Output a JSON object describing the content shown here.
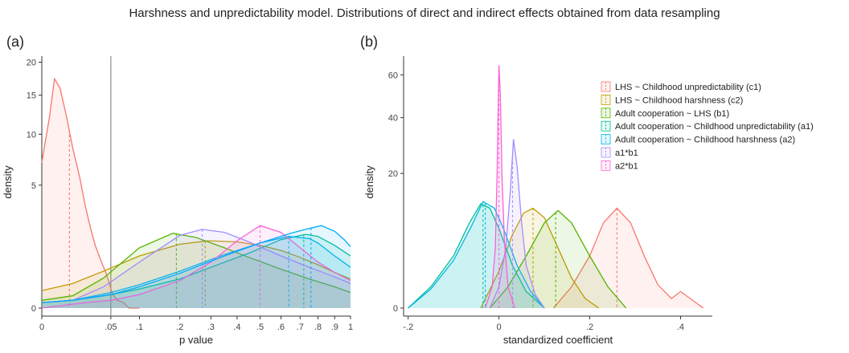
{
  "title": "Harshness and unpredictability model. Distributions of direct and indirect effects obtained from data resampling",
  "chart_data": [
    {
      "panel": "(a)",
      "type": "area",
      "xlabel": "p value",
      "ylabel": "density",
      "x_ticks": [
        {
          "value": 0,
          "label": "0"
        },
        {
          "value": 0.05,
          "label": ".05"
        },
        {
          "value": 0.1,
          "label": ".1"
        },
        {
          "value": 0.2,
          "label": ".2"
        },
        {
          "value": 0.3,
          "label": ".3"
        },
        {
          "value": 0.4,
          "label": ".4"
        },
        {
          "value": 0.5,
          "label": ".5"
        },
        {
          "value": 0.6,
          "label": ".6"
        },
        {
          "value": 0.7,
          "label": ".7"
        },
        {
          "value": 0.8,
          "label": ".8"
        },
        {
          "value": 0.9,
          "label": ".9"
        },
        {
          "value": 1,
          "label": "1"
        }
      ],
      "y_ticks": [
        {
          "value": 0,
          "label": "0"
        },
        {
          "value": 5,
          "label": "5"
        },
        {
          "value": 10,
          "label": "10"
        },
        {
          "value": 15,
          "label": "15"
        },
        {
          "value": 20,
          "label": "20"
        }
      ],
      "x_scale": "sqrt",
      "y_scale": "sqrt",
      "xlim": [
        0,
        1
      ],
      "ylim": [
        0,
        21
      ],
      "reference_line": 0.05,
      "series": [
        {
          "color": "#F8766D",
          "x": [
            0,
            0.0006,
            0.0017,
            0.0035,
            0.0065,
            0.01,
            0.015,
            0.02,
            0.025,
            0.03,
            0.036,
            0.043,
            0.048,
            0.05,
            0.053,
            0.06,
            0.07,
            0.08,
            0.1
          ],
          "y": [
            7,
            12,
            17.4,
            16,
            12,
            8.5,
            5.7,
            3.4,
            2.1,
            1.3,
            0.78,
            0.42,
            0.2,
            0.12,
            0.06,
            0.02,
            0.01,
            0,
            0
          ],
          "median": 0.008
        },
        {
          "color": "#C49A00",
          "x": [
            0,
            0.01,
            0.04,
            0.1,
            0.2,
            0.29,
            0.4,
            0.5,
            0.6,
            0.7,
            0.8,
            0.9,
            1
          ],
          "y": [
            0.1,
            0.2,
            0.45,
            0.9,
            1.35,
            1.5,
            1.45,
            1.3,
            1.1,
            0.85,
            0.62,
            0.42,
            0.28
          ],
          "median": 0.28
        },
        {
          "color": "#53B400",
          "x": [
            0,
            0.01,
            0.04,
            0.1,
            0.18,
            0.25,
            0.35,
            0.45,
            0.6,
            0.75,
            0.9,
            1
          ],
          "y": [
            0.02,
            0.05,
            0.3,
            1.2,
            1.85,
            1.65,
            1.2,
            0.85,
            0.5,
            0.28,
            0.15,
            0.08
          ],
          "median": 0.19
        },
        {
          "color": "#00C094",
          "x": [
            0,
            0.01,
            0.05,
            0.1,
            0.2,
            0.3,
            0.45,
            0.6,
            0.73,
            0.8,
            0.9,
            1
          ],
          "y": [
            0.01,
            0.02,
            0.06,
            0.12,
            0.28,
            0.55,
            1.0,
            1.55,
            1.8,
            1.7,
            1.3,
            0.9
          ],
          "median": 0.72
        },
        {
          "color": "#00B6EB",
          "x": [
            0,
            0.01,
            0.05,
            0.1,
            0.2,
            0.35,
            0.5,
            0.64,
            0.75,
            0.8,
            0.9,
            1
          ],
          "y": [
            0.01,
            0.02,
            0.08,
            0.18,
            0.45,
            0.95,
            1.4,
            1.7,
            1.6,
            1.4,
            0.9,
            0.55
          ],
          "median": 0.64
        },
        {
          "color": "#A58AFF",
          "x": [
            0,
            0.01,
            0.04,
            0.1,
            0.2,
            0.27,
            0.35,
            0.45,
            0.6,
            0.75,
            0.9,
            1
          ],
          "y": [
            0.01,
            0.02,
            0.15,
            0.7,
            1.75,
            2.05,
            1.9,
            1.45,
            0.9,
            0.55,
            0.32,
            0.2
          ],
          "median": 0.27
        },
        {
          "color": "#FB61D7",
          "x": [
            0,
            0.02,
            0.05,
            0.1,
            0.2,
            0.3,
            0.4,
            0.5,
            0.6,
            0.7,
            0.8,
            0.9,
            1
          ],
          "y": [
            0,
            0.01,
            0.02,
            0.06,
            0.25,
            0.7,
            1.5,
            2.25,
            1.9,
            1.2,
            0.7,
            0.42,
            0.25
          ],
          "median": 0.5
        },
        {
          "color": "#00A9FF",
          "x": [
            0,
            0.01,
            0.05,
            0.1,
            0.2,
            0.35,
            0.5,
            0.65,
            0.75,
            0.82,
            0.9,
            0.96,
            1
          ],
          "y": [
            0.01,
            0.02,
            0.06,
            0.15,
            0.4,
            0.9,
            1.4,
            1.85,
            2.1,
            2.25,
            1.95,
            1.55,
            1.25
          ],
          "median": 0.76
        }
      ]
    },
    {
      "panel": "(b)",
      "type": "area",
      "xlabel": "standardized coefficient",
      "ylabel": "density",
      "x_ticks": [
        {
          "value": -0.2,
          "label": "-.2"
        },
        {
          "value": 0,
          "label": "0"
        },
        {
          "value": 0.2,
          "label": ".2"
        },
        {
          "value": 0.4,
          "label": ".4"
        }
      ],
      "y_ticks": [
        {
          "value": 0,
          "label": "0"
        },
        {
          "value": 20,
          "label": "20"
        },
        {
          "value": 40,
          "label": "40"
        },
        {
          "value": 60,
          "label": "60"
        }
      ],
      "y_scale": "sqrt",
      "xlim": [
        -0.21,
        0.47
      ],
      "ylim": [
        0,
        70
      ],
      "series": [
        {
          "name": "LHS ~ Childhood unpredictability (c1)",
          "color": "#F8766D",
          "x": [
            0.12,
            0.16,
            0.2,
            0.23,
            0.26,
            0.29,
            0.32,
            0.35,
            0.38,
            0.4,
            0.43,
            0.45
          ],
          "y": [
            0,
            0.5,
            3,
            8,
            11,
            8,
            3,
            0.6,
            0.1,
            0.3,
            0.05,
            0
          ],
          "median": 0.26
        },
        {
          "name": "LHS ~ Childhood harshness (c2)",
          "color": "#C49A00",
          "x": [
            -0.04,
            0,
            0.03,
            0.055,
            0.075,
            0.1,
            0.13,
            0.16,
            0.19,
            0.22
          ],
          "y": [
            0,
            1.5,
            6,
            10,
            11,
            9,
            4,
            1,
            0.1,
            0
          ],
          "median": 0.075
        },
        {
          "name": "Adult cooperation ~ LHS (b1)",
          "color": "#53B400",
          "x": [
            -0.02,
            0.02,
            0.06,
            0.1,
            0.13,
            0.16,
            0.2,
            0.24,
            0.28
          ],
          "y": [
            0,
            0.5,
            3,
            8,
            10.5,
            8,
            3,
            0.5,
            0
          ],
          "median": 0.125
        },
        {
          "name": "Adult cooperation ~ Childhood unpredictability (a1)",
          "color": "#00C094",
          "x": [
            -0.2,
            -0.15,
            -0.1,
            -0.065,
            -0.04,
            -0.02,
            0,
            0.03,
            0.06,
            0.1
          ],
          "y": [
            0,
            0.5,
            3,
            8,
            12,
            11,
            7,
            2,
            0.3,
            0
          ],
          "median": -0.035
        },
        {
          "name": "Adult cooperation ~ Childhood harshness (a2)",
          "color": "#00B6EB",
          "x": [
            -0.2,
            -0.15,
            -0.1,
            -0.06,
            -0.035,
            -0.01,
            0.01,
            0.04,
            0.07,
            0.1
          ],
          "y": [
            0,
            0.4,
            2.5,
            7.5,
            12.5,
            11,
            7,
            2,
            0.3,
            0
          ],
          "median": -0.03
        },
        {
          "name": "a1*b1",
          "color": "#A58AFF",
          "x": [
            -0.02,
            0,
            0.015,
            0.025,
            0.032,
            0.04,
            0.05,
            0.06,
            0.08,
            0.1
          ],
          "y": [
            0,
            0.5,
            4,
            15,
            31.5,
            22,
            8,
            2,
            0.2,
            0
          ],
          "median": 0.03
        },
        {
          "name": "a2*b1",
          "color": "#FB61D7",
          "x": [
            -0.03,
            -0.015,
            -0.008,
            -0.004,
            0,
            0.003,
            0.007,
            0.012,
            0.02,
            0.035
          ],
          "y": [
            0,
            0.5,
            4,
            20,
            65,
            50,
            18,
            5,
            0.5,
            0
          ],
          "median": 0.0
        }
      ]
    }
  ]
}
